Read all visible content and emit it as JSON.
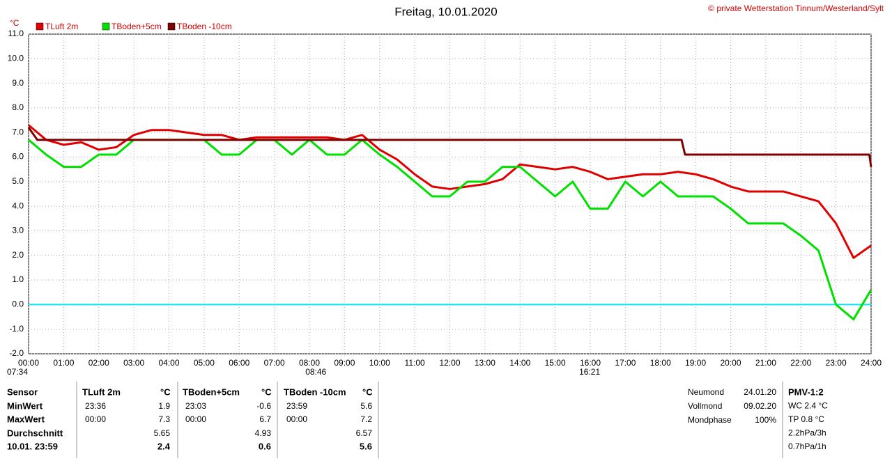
{
  "chart_data": {
    "type": "line",
    "title": "Freitag, 10.01.2020",
    "copyright": "© private Wetterstation Tinnum/Westerland/Sylt",
    "y_unit": "°C",
    "xlim": [
      0,
      24
    ],
    "xticks": [
      {
        "value": 0,
        "label": "00:00"
      },
      {
        "value": 1,
        "label": "01:00"
      },
      {
        "value": 2,
        "label": "02:00"
      },
      {
        "value": 3,
        "label": "03:00"
      },
      {
        "value": 4,
        "label": "04:00"
      },
      {
        "value": 5,
        "label": "05:00"
      },
      {
        "value": 6,
        "label": "06:00"
      },
      {
        "value": 7,
        "label": "07:00"
      },
      {
        "value": 8,
        "label": "08:00"
      },
      {
        "value": 9,
        "label": "09:00"
      },
      {
        "value": 10,
        "label": "10:00"
      },
      {
        "value": 11,
        "label": "11:00"
      },
      {
        "value": 12,
        "label": "12:00"
      },
      {
        "value": 13,
        "label": "13:00"
      },
      {
        "value": 14,
        "label": "14:00"
      },
      {
        "value": 15,
        "label": "15:00"
      },
      {
        "value": 16,
        "label": "16:00"
      },
      {
        "value": 17,
        "label": "17:00"
      },
      {
        "value": 18,
        "label": "18:00"
      },
      {
        "value": 19,
        "label": "19:00"
      },
      {
        "value": 20,
        "label": "20:00"
      },
      {
        "value": 21,
        "label": "21:00"
      },
      {
        "value": 22,
        "label": "22:00"
      },
      {
        "value": 23,
        "label": "23:00"
      },
      {
        "value": 24,
        "label": "24:00"
      }
    ],
    "ylim": [
      -2,
      11
    ],
    "yticks": [
      {
        "value": -2,
        "label": "-2.0"
      },
      {
        "value": -1,
        "label": "-1.0"
      },
      {
        "value": 0,
        "label": "0.0"
      },
      {
        "value": 1,
        "label": "1.0"
      },
      {
        "value": 2,
        "label": "2.0"
      },
      {
        "value": 3,
        "label": "3.0"
      },
      {
        "value": 4,
        "label": "4.0"
      },
      {
        "value": 5,
        "label": "5.0"
      },
      {
        "value": 6,
        "label": "6.0"
      },
      {
        "value": 7,
        "label": "7.0"
      },
      {
        "value": 8,
        "label": "8.0"
      },
      {
        "value": 9,
        "label": "9.0"
      },
      {
        "value": 10,
        "label": "10.0"
      },
      {
        "value": 11,
        "label": "11.0"
      }
    ],
    "grid": true,
    "reference_line": {
      "value": 0,
      "color": "#00e5ff"
    },
    "annotations": [
      {
        "x": 0,
        "text": "07:34"
      },
      {
        "x": 8.5,
        "text": "08:46"
      },
      {
        "x": 16.3,
        "text": "16:21"
      }
    ],
    "series": [
      {
        "name": "TLuft 2m",
        "color": "#e00000",
        "x": [
          0,
          0.5,
          1,
          1.5,
          2,
          2.5,
          3,
          3.5,
          4,
          4.5,
          5,
          5.5,
          6,
          6.5,
          7,
          7.5,
          8,
          8.5,
          9,
          9.5,
          10,
          10.5,
          11,
          11.5,
          12,
          12.5,
          13,
          13.5,
          14,
          14.5,
          15,
          15.5,
          16,
          16.5,
          17,
          17.5,
          18,
          18.5,
          19,
          19.5,
          20,
          20.5,
          21,
          21.5,
          22,
          22.5,
          23,
          23.5,
          24
        ],
        "values": [
          7.3,
          6.7,
          6.5,
          6.6,
          6.3,
          6.4,
          6.9,
          7.1,
          7.1,
          7.0,
          6.9,
          6.9,
          6.7,
          6.8,
          6.8,
          6.8,
          6.8,
          6.8,
          6.7,
          6.9,
          6.3,
          5.9,
          5.3,
          4.8,
          4.7,
          4.8,
          4.9,
          5.1,
          5.7,
          5.6,
          5.5,
          5.6,
          5.4,
          5.1,
          5.2,
          5.3,
          5.3,
          5.4,
          5.3,
          5.1,
          4.8,
          4.6,
          4.6,
          4.6,
          4.4,
          4.2,
          3.3,
          1.9,
          2.4
        ]
      },
      {
        "name": "TBoden+5cm",
        "color": "#00e000",
        "x": [
          0,
          0.5,
          1,
          1.5,
          2,
          2.5,
          3,
          3.5,
          4,
          4.5,
          5,
          5.5,
          6,
          6.5,
          7,
          7.5,
          8,
          8.5,
          9,
          9.5,
          10,
          10.5,
          11,
          11.5,
          12,
          12.5,
          13,
          13.5,
          14,
          14.5,
          15,
          15.5,
          16,
          16.5,
          17,
          17.5,
          18,
          18.5,
          19,
          19.5,
          20,
          20.5,
          21,
          21.5,
          22,
          22.5,
          23,
          23.5,
          24
        ],
        "values": [
          6.7,
          6.1,
          5.6,
          5.6,
          6.1,
          6.1,
          6.7,
          6.7,
          6.7,
          6.7,
          6.7,
          6.1,
          6.1,
          6.7,
          6.7,
          6.1,
          6.7,
          6.1,
          6.1,
          6.7,
          6.1,
          5.6,
          5.0,
          4.4,
          4.4,
          5.0,
          5.0,
          5.6,
          5.6,
          5.0,
          4.4,
          5.0,
          3.9,
          3.9,
          5.0,
          4.4,
          5.0,
          4.4,
          4.4,
          4.4,
          3.9,
          3.3,
          3.3,
          3.3,
          2.8,
          2.2,
          0.0,
          -0.6,
          0.6
        ]
      },
      {
        "name": "TBoden -10cm",
        "color": "#800000",
        "x": [
          0,
          0.25,
          18.6,
          18.7,
          23.95,
          24
        ],
        "values": [
          7.2,
          6.7,
          6.7,
          6.1,
          6.1,
          5.6
        ]
      }
    ]
  },
  "table": {
    "header": [
      "Sensor",
      "TLuft 2m",
      "°C",
      "TBoden+5cm",
      "°C",
      "TBoden -10cm",
      "°C"
    ],
    "rows": [
      {
        "label": "MinWert",
        "cells": [
          {
            "time": "23:36",
            "value": "1.9"
          },
          {
            "time": "23:03",
            "value": "-0.6"
          },
          {
            "time": "23:59",
            "value": "5.6"
          }
        ]
      },
      {
        "label": "MaxWert",
        "cells": [
          {
            "time": "00:00",
            "value": "7.3"
          },
          {
            "time": "00:00",
            "value": "6.7"
          },
          {
            "time": "00:00",
            "value": "7.2"
          }
        ]
      },
      {
        "label": "Durchschnitt",
        "cells": [
          {
            "value": "5.65"
          },
          {
            "value": "4.93"
          },
          {
            "value": "6.57"
          }
        ]
      },
      {
        "label": "10.01. 23:59",
        "cells": [
          {
            "value": "2.4"
          },
          {
            "value": "0.6"
          },
          {
            "value": "5.6"
          }
        ]
      }
    ]
  },
  "moon": [
    [
      "Neumond",
      "24.01.20"
    ],
    [
      "Vollmond",
      "09.02.20"
    ],
    [
      "Mondphase",
      "100%"
    ]
  ],
  "extra": [
    "PMV-1:2",
    "WC 2.4 °C",
    "TP 0.8 °C",
    "2.2hPa/3h",
    "0.7hPa/1h"
  ]
}
